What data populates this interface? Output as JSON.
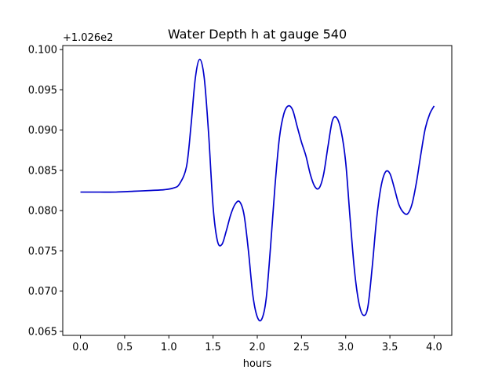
{
  "chart_data": {
    "type": "line",
    "title": "Water Depth h at gauge 540",
    "xlabel": "hours",
    "ylabel": "",
    "y_offset_label": "+1.026e2",
    "y_offset": 102.6,
    "xlim": [
      -0.2,
      4.2
    ],
    "ylim": [
      0.0645,
      0.1005
    ],
    "xticks": [
      0.0,
      0.5,
      1.0,
      1.5,
      2.0,
      2.5,
      3.0,
      3.5,
      4.0
    ],
    "xtick_labels": [
      "0.0",
      "0.5",
      "1.0",
      "1.5",
      "2.0",
      "2.5",
      "3.0",
      "3.5",
      "4.0"
    ],
    "yticks": [
      0.065,
      0.07,
      0.075,
      0.08,
      0.085,
      0.09,
      0.095,
      0.1
    ],
    "ytick_labels": [
      "0.065",
      "0.070",
      "0.075",
      "0.080",
      "0.085",
      "0.090",
      "0.095",
      "0.100"
    ],
    "grid": false,
    "series": [
      {
        "color": "#0000cc",
        "x": [
          0.0,
          0.2,
          0.4,
          0.6,
          0.8,
          0.95,
          1.05,
          1.12,
          1.2,
          1.25,
          1.3,
          1.35,
          1.4,
          1.45,
          1.5,
          1.55,
          1.6,
          1.65,
          1.7,
          1.75,
          1.8,
          1.85,
          1.9,
          1.95,
          2.0,
          2.05,
          2.1,
          2.15,
          2.2,
          2.25,
          2.3,
          2.35,
          2.4,
          2.45,
          2.5,
          2.55,
          2.6,
          2.65,
          2.7,
          2.75,
          2.8,
          2.85,
          2.9,
          2.95,
          3.0,
          3.05,
          3.1,
          3.15,
          3.2,
          3.25,
          3.3,
          3.35,
          3.4,
          3.45,
          3.5,
          3.55,
          3.6,
          3.65,
          3.7,
          3.75,
          3.8,
          3.85,
          3.9,
          3.95,
          4.0
        ],
        "y": [
          0.0823,
          0.0823,
          0.0823,
          0.0824,
          0.0825,
          0.0826,
          0.0828,
          0.0833,
          0.0855,
          0.0905,
          0.0965,
          0.0988,
          0.0965,
          0.0895,
          0.0805,
          0.0762,
          0.0758,
          0.0775,
          0.0795,
          0.0808,
          0.0811,
          0.0795,
          0.075,
          0.0695,
          0.0668,
          0.0665,
          0.069,
          0.0755,
          0.083,
          0.089,
          0.092,
          0.093,
          0.0925,
          0.0905,
          0.0885,
          0.0868,
          0.0845,
          0.083,
          0.0828,
          0.0845,
          0.088,
          0.0912,
          0.0915,
          0.0898,
          0.086,
          0.079,
          0.0725,
          0.0685,
          0.067,
          0.068,
          0.073,
          0.079,
          0.083,
          0.0848,
          0.0846,
          0.0828,
          0.0808,
          0.0798,
          0.0796,
          0.0808,
          0.0835,
          0.087,
          0.0902,
          0.092,
          0.093
        ]
      }
    ]
  }
}
